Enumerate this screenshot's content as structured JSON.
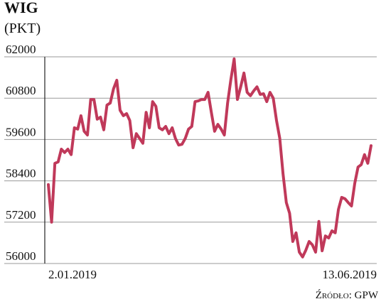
{
  "chart_data": {
    "type": "line",
    "title": "WIG",
    "subtitle": "(PKT)",
    "source": "Źródło: GPW",
    "color": "#c0395a",
    "grid": true,
    "ylim": [
      56000,
      62000
    ],
    "yticks": [
      56000,
      57200,
      58400,
      59600,
      60800,
      62000
    ],
    "categories": [
      "2.01.2019",
      null,
      null,
      null,
      null,
      null,
      null,
      null,
      null,
      null,
      null,
      null,
      null,
      null,
      null,
      null,
      null,
      null,
      null,
      null,
      null,
      null,
      null,
      null,
      null,
      null,
      null,
      null,
      null,
      null,
      null,
      null,
      null,
      null,
      null,
      null,
      null,
      null,
      null,
      null,
      null,
      null,
      null,
      null,
      null,
      null,
      null,
      null,
      null,
      null,
      null,
      null,
      null,
      null,
      null,
      null,
      null,
      null,
      null,
      null,
      null,
      null,
      null,
      null,
      null,
      null,
      null,
      null,
      null,
      null,
      null,
      null,
      null,
      null,
      null,
      null,
      null,
      null,
      null,
      null,
      null,
      null,
      null,
      null,
      null,
      null,
      null,
      null,
      null,
      null,
      null,
      null,
      null,
      null,
      null,
      null,
      null,
      null,
      null,
      "13.06.2019"
    ],
    "values": [
      58290,
      57200,
      58910,
      58950,
      59320,
      59220,
      59320,
      59160,
      59940,
      59900,
      60290,
      59840,
      59730,
      60760,
      60760,
      60190,
      60250,
      59880,
      60600,
      60660,
      61070,
      61320,
      60450,
      60290,
      60350,
      60150,
      59360,
      59770,
      59630,
      59490,
      60390,
      59940,
      60700,
      60560,
      59940,
      59880,
      59980,
      59770,
      59940,
      59630,
      59440,
      59460,
      59630,
      59900,
      59980,
      60700,
      60720,
      60760,
      60760,
      60970,
      60390,
      59840,
      60040,
      59900,
      59730,
      60660,
      61340,
      61940,
      60760,
      61130,
      61530,
      60970,
      60870,
      61010,
      61130,
      60910,
      60930,
      60700,
      60970,
      60800,
      60150,
      59630,
      58600,
      57770,
      57460,
      56640,
      56890,
      56330,
      56190,
      56390,
      56640,
      56540,
      56330,
      57220,
      56370,
      56800,
      56740,
      56950,
      56890,
      57570,
      57920,
      57880,
      57770,
      57670,
      58330,
      58800,
      58870,
      59160,
      58910,
      59420
    ]
  }
}
